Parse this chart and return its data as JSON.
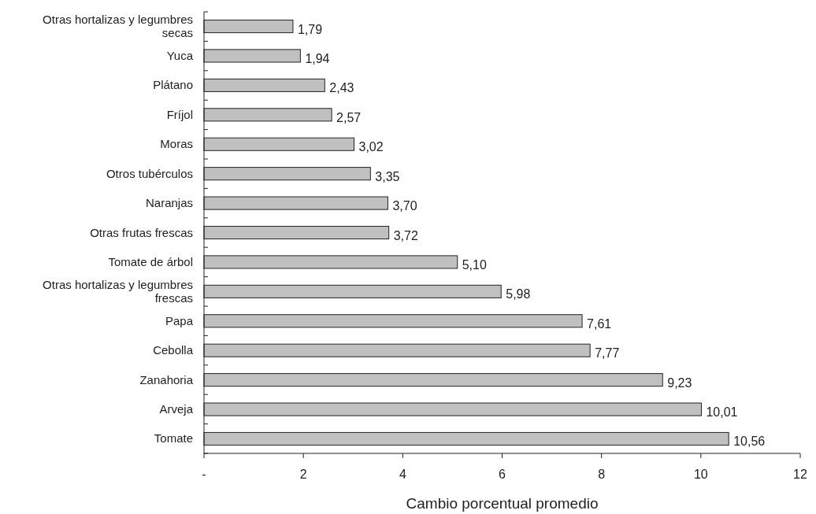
{
  "chart_data": {
    "type": "bar",
    "orientation": "horizontal",
    "xlabel": "Cambio porcentual promedio",
    "categories": [
      "Otras hortalizas y legumbres secas",
      "Yuca",
      "Plátano",
      "Fríjol",
      "Moras",
      "Otros tubérculos",
      "Naranjas",
      "Otras frutas frescas",
      "Tomate de árbol",
      "Otras hortalizas y legumbres frescas",
      "Papa",
      "Cebolla",
      "Zanahoria",
      "Arveja",
      "Tomate"
    ],
    "values": [
      1.79,
      1.94,
      2.43,
      2.57,
      3.02,
      3.35,
      3.7,
      3.72,
      5.1,
      5.98,
      7.61,
      7.77,
      9.23,
      10.01,
      10.56
    ],
    "value_labels": [
      "1,79",
      "1,94",
      "2,43",
      "2,57",
      "3,02",
      "3,35",
      "3,70",
      "3,72",
      "5,10",
      "5,98",
      "7,61",
      "7,77",
      "9,23",
      "10,01",
      "10,56"
    ],
    "color": "#c0c0c0",
    "xlim": [
      0,
      12
    ],
    "xticks": [
      {
        "value": 0,
        "label": "-"
      },
      2,
      4,
      6,
      8,
      10,
      12
    ],
    "grid": false
  }
}
